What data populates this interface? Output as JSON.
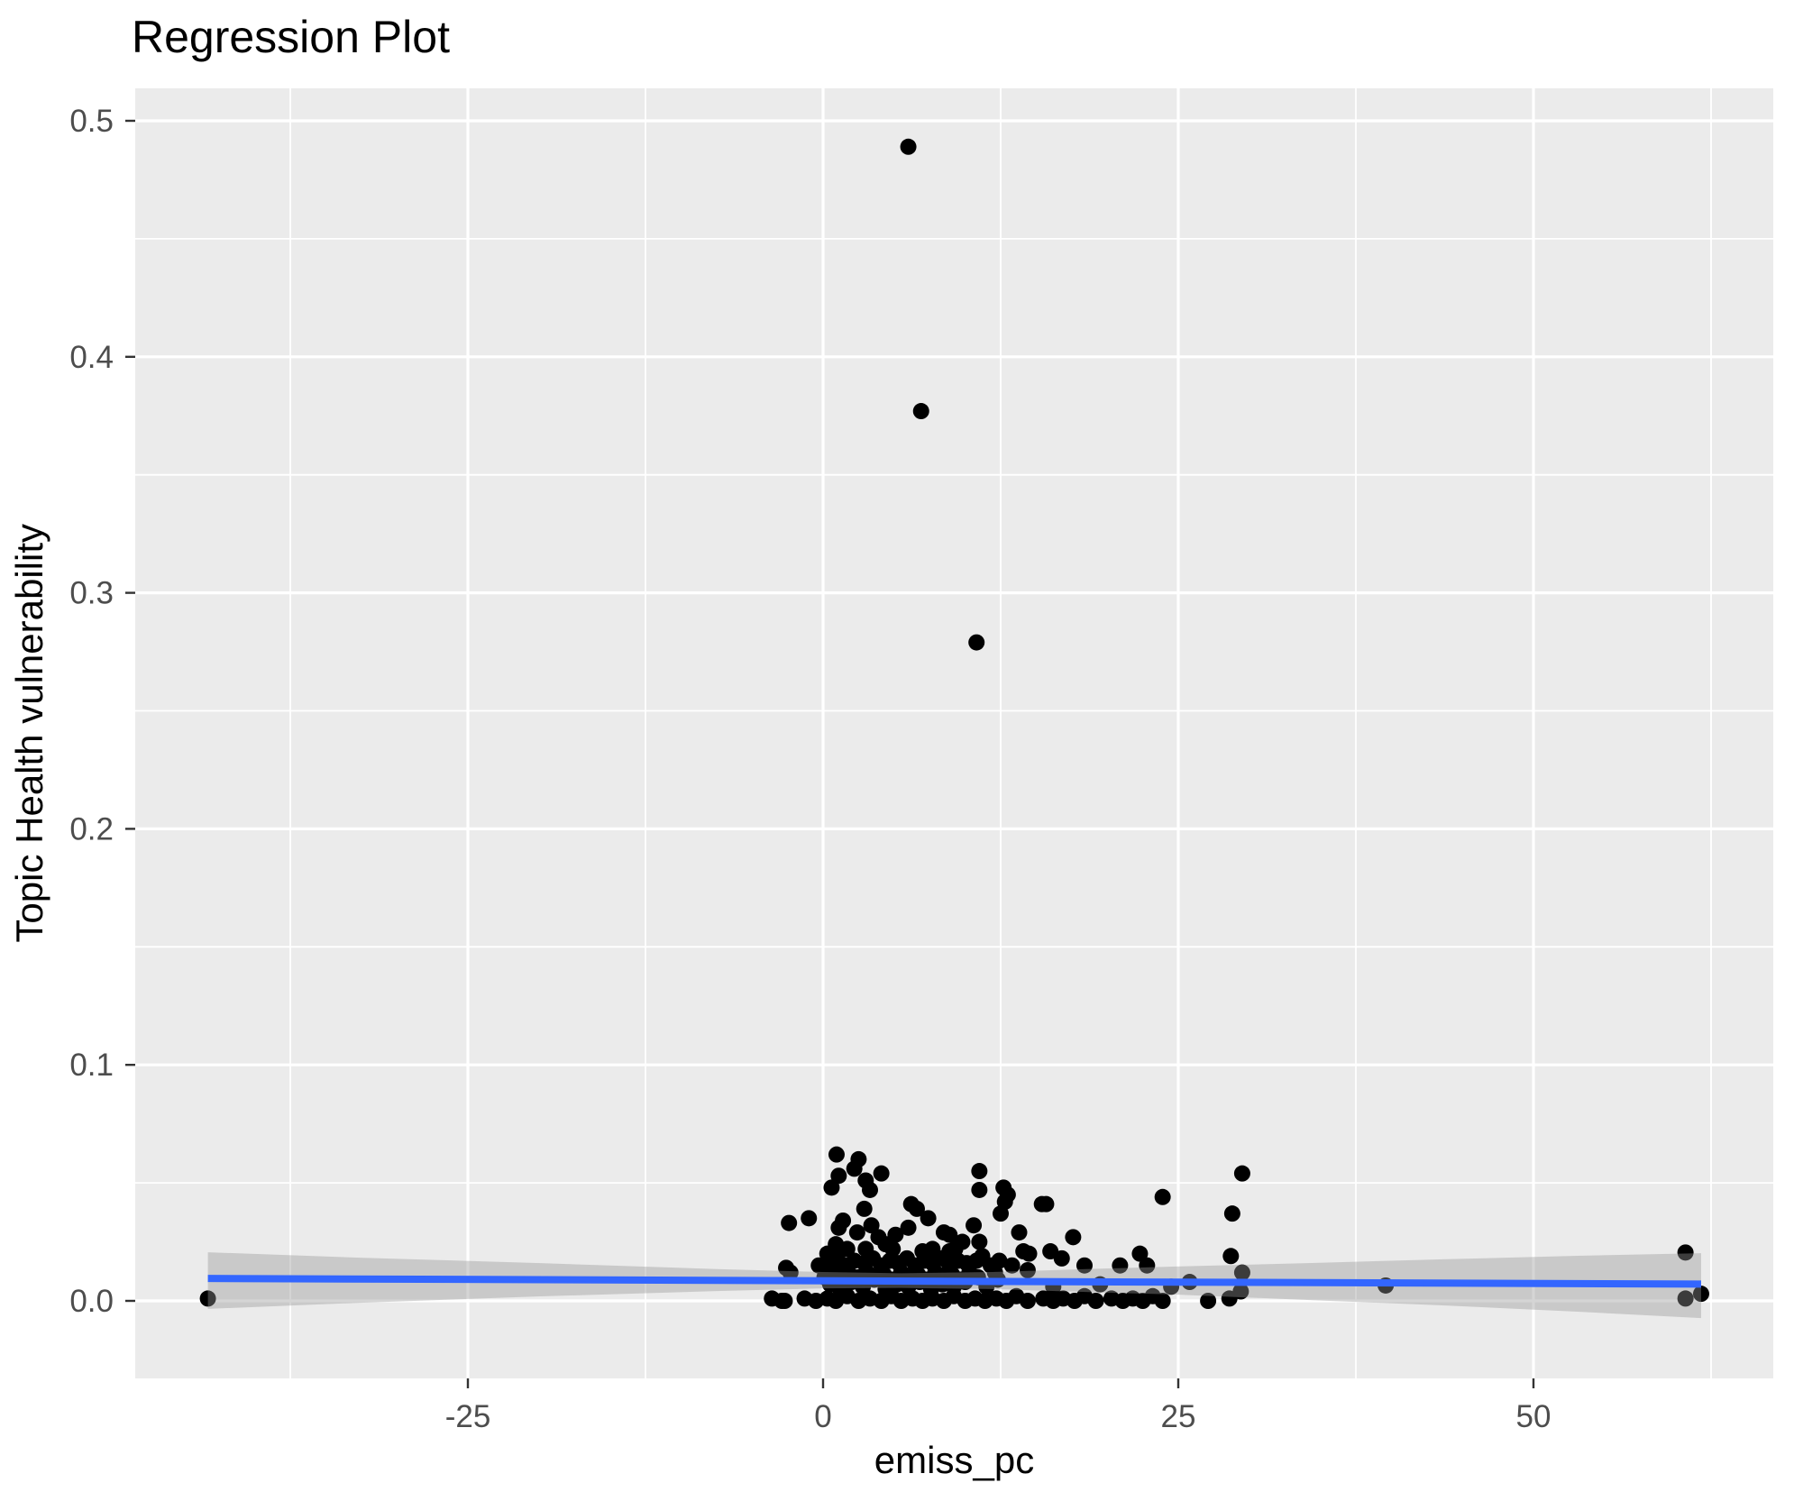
{
  "chart_data": {
    "type": "scatter",
    "title": "Regression Plot",
    "xlabel": "emiss_pc",
    "ylabel": "Topic Health vulnerability",
    "xlim": [
      -48.6,
      66.9
    ],
    "ylim": [
      -0.033,
      0.514
    ],
    "grid": "white major and minor gridlines on grey panel, legend none",
    "colors": {
      "panel": "#EBEBEB",
      "grid": "#FFFFFF",
      "point": "#000000",
      "line": "#3366FF",
      "band": "rgba(150,150,150,0.4)",
      "tick_text": "#4D4D4D",
      "tick_mark": "#333333",
      "title_text": "#000000"
    },
    "x_ticks": [
      {
        "value": -25,
        "label": "-25"
      },
      {
        "value": 0,
        "label": "0"
      },
      {
        "value": 25,
        "label": "25"
      },
      {
        "value": 50,
        "label": "50"
      }
    ],
    "x_minor_ticks": [
      -37.5,
      -12.5,
      12.5,
      37.5,
      62.5
    ],
    "y_ticks": [
      {
        "value": 0.5,
        "label": "0.5"
      },
      {
        "value": 0.4,
        "label": "0.4"
      },
      {
        "value": 0.3,
        "label": "0.3"
      },
      {
        "value": 0.2,
        "label": "0.2"
      },
      {
        "value": 0.1,
        "label": "0.1"
      },
      {
        "value": 0.0,
        "label": "0.0"
      }
    ],
    "y_minor_ticks": [
      0.45,
      0.35,
      0.25,
      0.15,
      0.05
    ],
    "regression_line": {
      "x1": -43.3,
      "y1": 0.0095,
      "x2": 61.8,
      "y2": 0.0071
    },
    "confidence_band": [
      [
        -43.3,
        -0.0034,
        0.0206
      ],
      [
        -32.6,
        -0.0008,
        0.0183
      ],
      [
        -19.9,
        0.0019,
        0.016
      ],
      [
        -7.2,
        0.0042,
        0.0134
      ],
      [
        0.0,
        0.0053,
        0.0122
      ],
      [
        5.5,
        0.0055,
        0.0117
      ],
      [
        11.9,
        0.005,
        0.0122
      ],
      [
        18.2,
        0.0038,
        0.0134
      ],
      [
        24.6,
        0.0027,
        0.0145
      ],
      [
        34.1,
        0.0004,
        0.016
      ],
      [
        43.6,
        -0.0019,
        0.0176
      ],
      [
        53.1,
        -0.0046,
        0.0191
      ],
      [
        61.8,
        -0.0073,
        0.0202
      ]
    ],
    "points": [
      [
        6.0,
        0.489
      ],
      [
        6.9,
        0.377
      ],
      [
        10.8,
        0.279
      ],
      [
        -43.3,
        0.001
      ],
      [
        39.6,
        0.0065
      ],
      [
        60.7,
        0.0205
      ],
      [
        60.7,
        0.001
      ],
      [
        61.8,
        0.003
      ],
      [
        0.95,
        0.062
      ],
      [
        2.5,
        0.06
      ],
      [
        2.2,
        0.056
      ],
      [
        1.1,
        0.053
      ],
      [
        0.6,
        0.048
      ],
      [
        3.0,
        0.051
      ],
      [
        4.1,
        0.054
      ],
      [
        3.3,
        0.047
      ],
      [
        11.0,
        0.055
      ],
      [
        11.0,
        0.047
      ],
      [
        12.8,
        0.042
      ],
      [
        12.5,
        0.037
      ],
      [
        12.7,
        0.048
      ],
      [
        13.0,
        0.045
      ],
      [
        15.4,
        0.041
      ],
      [
        15.7,
        0.041
      ],
      [
        23.9,
        0.044
      ],
      [
        29.5,
        0.054
      ],
      [
        28.8,
        0.037
      ],
      [
        -2.4,
        0.033
      ],
      [
        -1.0,
        0.035
      ],
      [
        6.2,
        0.041
      ],
      [
        6.6,
        0.039
      ],
      [
        7.4,
        0.035
      ],
      [
        2.9,
        0.039
      ],
      [
        1.4,
        0.034
      ],
      [
        3.4,
        0.032
      ],
      [
        1.1,
        0.031
      ],
      [
        2.4,
        0.029
      ],
      [
        3.9,
        0.027
      ],
      [
        5.1,
        0.028
      ],
      [
        6.0,
        0.031
      ],
      [
        8.5,
        0.029
      ],
      [
        8.9,
        0.028
      ],
      [
        9.8,
        0.025
      ],
      [
        10.6,
        0.032
      ],
      [
        11.0,
        0.025
      ],
      [
        0.9,
        0.024
      ],
      [
        0.3,
        0.02
      ],
      [
        1.7,
        0.022
      ],
      [
        3.0,
        0.022
      ],
      [
        4.4,
        0.024
      ],
      [
        4.9,
        0.022
      ],
      [
        7.0,
        0.021
      ],
      [
        7.7,
        0.022
      ],
      [
        8.9,
        0.021
      ],
      [
        9.3,
        0.022
      ],
      [
        10.8,
        0.017
      ],
      [
        11.2,
        0.019
      ],
      [
        -2.6,
        0.014
      ],
      [
        -0.3,
        0.015
      ],
      [
        13.8,
        0.029
      ],
      [
        14.1,
        0.021
      ],
      [
        14.5,
        0.02
      ],
      [
        13.3,
        0.015
      ],
      [
        12.1,
        0.012
      ],
      [
        14.4,
        0.013
      ],
      [
        -2.3,
        0.012
      ],
      [
        16.0,
        0.021
      ],
      [
        16.8,
        0.018
      ],
      [
        17.6,
        0.027
      ],
      [
        18.4,
        0.015
      ],
      [
        20.9,
        0.015
      ],
      [
        22.3,
        0.02
      ],
      [
        22.8,
        0.015
      ],
      [
        28.7,
        0.019
      ],
      [
        29.5,
        0.012
      ],
      [
        29.4,
        0.004
      ],
      [
        0.5,
        0.007
      ],
      [
        1.2,
        0.005
      ],
      [
        2.0,
        0.008
      ],
      [
        2.8,
        0.006
      ],
      [
        3.6,
        0.009
      ],
      [
        4.4,
        0.005
      ],
      [
        5.2,
        0.007
      ],
      [
        6.0,
        0.006
      ],
      [
        6.8,
        0.008
      ],
      [
        7.6,
        0.005
      ],
      [
        8.4,
        0.007
      ],
      [
        9.2,
        0.006
      ],
      [
        10.0,
        0.008
      ],
      [
        11.5,
        0.006
      ],
      [
        12.3,
        0.009
      ],
      [
        16.2,
        0.006
      ],
      [
        19.5,
        0.007
      ],
      [
        24.5,
        0.006
      ],
      [
        25.8,
        0.008
      ],
      [
        0.1,
        0.01
      ],
      [
        0.7,
        0.012
      ],
      [
        1.3,
        0.009
      ],
      [
        1.9,
        0.011
      ],
      [
        2.5,
        0.01
      ],
      [
        3.1,
        0.012
      ],
      [
        3.7,
        0.01
      ],
      [
        4.3,
        0.011
      ],
      [
        4.9,
        0.009
      ],
      [
        5.5,
        0.012
      ],
      [
        6.1,
        0.01
      ],
      [
        6.7,
        0.011
      ],
      [
        7.3,
        0.009
      ],
      [
        7.9,
        0.012
      ],
      [
        8.5,
        0.01
      ],
      [
        9.1,
        0.011
      ],
      [
        9.7,
        0.009
      ],
      [
        10.3,
        0.012
      ],
      [
        10.9,
        0.01
      ],
      [
        0.4,
        0.016
      ],
      [
        1.0,
        0.018
      ],
      [
        1.6,
        0.015
      ],
      [
        2.2,
        0.017
      ],
      [
        2.9,
        0.016
      ],
      [
        3.5,
        0.018
      ],
      [
        4.1,
        0.015
      ],
      [
        4.7,
        0.017
      ],
      [
        5.3,
        0.016
      ],
      [
        5.9,
        0.018
      ],
      [
        6.5,
        0.015
      ],
      [
        7.1,
        0.017
      ],
      [
        7.7,
        0.016
      ],
      [
        8.3,
        0.018
      ],
      [
        8.9,
        0.015
      ],
      [
        9.5,
        0.017
      ],
      [
        10.1,
        0.016
      ],
      [
        11.8,
        0.015
      ],
      [
        12.4,
        0.017
      ],
      [
        -3.6,
        0.001
      ],
      [
        -2.9,
        0.0
      ],
      [
        -2.7,
        0.0
      ],
      [
        -1.3,
        0.001
      ],
      [
        -0.5,
        0.0
      ],
      [
        0.3,
        0.001
      ],
      [
        0.9,
        0.0
      ],
      [
        1.7,
        0.002
      ],
      [
        2.5,
        0.0
      ],
      [
        3.3,
        0.001
      ],
      [
        4.1,
        0.0
      ],
      [
        4.8,
        0.002
      ],
      [
        5.5,
        0.0
      ],
      [
        6.3,
        0.001
      ],
      [
        7.0,
        0.0
      ],
      [
        7.7,
        0.001
      ],
      [
        8.5,
        0.0
      ],
      [
        9.2,
        0.002
      ],
      [
        10.0,
        0.0
      ],
      [
        10.7,
        0.001
      ],
      [
        11.4,
        0.0
      ],
      [
        12.2,
        0.001
      ],
      [
        12.9,
        0.0
      ],
      [
        13.6,
        0.002
      ],
      [
        14.4,
        0.0
      ],
      [
        15.5,
        0.001
      ],
      [
        16.2,
        0.0
      ],
      [
        16.9,
        0.001
      ],
      [
        17.7,
        0.0
      ],
      [
        18.4,
        0.002
      ],
      [
        19.2,
        0.0
      ],
      [
        20.3,
        0.001
      ],
      [
        21.1,
        0.0
      ],
      [
        21.8,
        0.001
      ],
      [
        22.5,
        0.0
      ],
      [
        23.2,
        0.002
      ],
      [
        23.9,
        0.0
      ],
      [
        27.1,
        0.0
      ],
      [
        28.6,
        0.001
      ]
    ]
  }
}
